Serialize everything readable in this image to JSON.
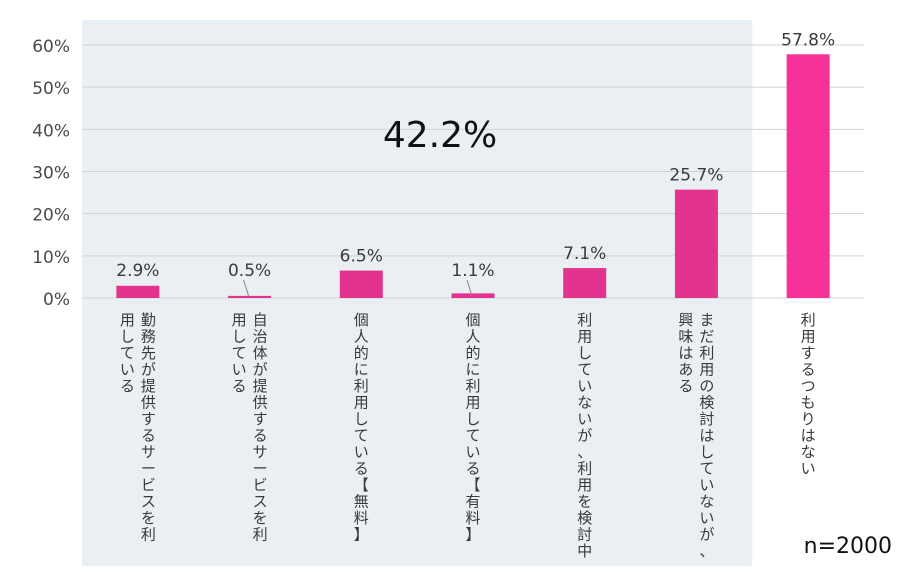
{
  "chart_data": {
    "type": "bar",
    "categories": [
      "勤務先が提供するサービスを利用している",
      "自治体が提供するサービスを利用している",
      "個人的に利用している【無料】",
      "個人的に利用している【有料】",
      "利用していないが、利用を検討中",
      "まだ利用の検討はしていないが、興味はある",
      "利用するつもりはない"
    ],
    "category_lines": [
      [
        "勤務先が提供するサービスを利",
        "用している"
      ],
      [
        "自治体が提供するサービスを利",
        "用している"
      ],
      [
        "個人的に利用している【無料】"
      ],
      [
        "個人的に利用している【有料】"
      ],
      [
        "利用していないが、利用を検討中"
      ],
      [
        "まだ利用の検討はしていないが、",
        "興味はある"
      ],
      [
        "利用するつもりはない"
      ]
    ],
    "values": [
      2.9,
      0.5,
      6.5,
      1.1,
      7.1,
      25.7,
      57.8
    ],
    "value_labels": [
      "2.9%",
      "0.5%",
      "6.5%",
      "1.1%",
      "7.1%",
      "25.7%",
      "57.8%"
    ],
    "ylim": [
      0,
      65
    ],
    "yticks": [
      0,
      10,
      20,
      30,
      40,
      50,
      60
    ],
    "ytick_labels": [
      "0%",
      "10%",
      "20%",
      "30%",
      "40%",
      "50%",
      "60%"
    ],
    "grid": true,
    "highlight_group": {
      "categories_count": 6,
      "label": "42.2%"
    },
    "note": "n=2000",
    "colors": {
      "bar": "#e4338f",
      "bar_last": "#f5319a",
      "highlight_bg": "#eaeff3",
      "grid": "#cfd3d6",
      "axis_text": "#4a4a4a",
      "label_text": "#3a3a3a"
    }
  }
}
